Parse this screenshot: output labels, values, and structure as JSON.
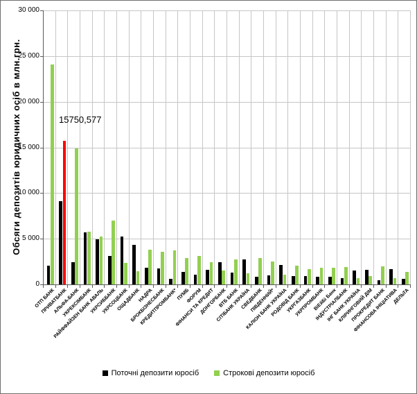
{
  "chart_data": {
    "type": "bar",
    "title": "",
    "xlabel": "",
    "ylabel": "Обсяги депозитів юридичних осіб в млн.грн.",
    "ylim": [
      0,
      30000
    ],
    "ytick_interval": 5000,
    "ytick_labels": [
      "0",
      "5 000",
      "10 000",
      "15 000",
      "20 000",
      "25 000",
      "30 000"
    ],
    "grid": true,
    "legend_position": "bottom",
    "annotation": "15750,577",
    "annotation_target": "ПРИВАТБАНК",
    "categories": [
      "ОТП БАНК",
      "ПРИВАТБАНК",
      "АЛЬФА-БАНК",
      "УКРЕКСІМБАНК",
      "РАЙФФАЙЗЕН БАНК АВАЛЬ",
      "УКРСИББАНК",
      "УКРСОЦБАНК",
      "ОЩАДБАНК",
      "НАДРА",
      "БРОКБІЗНЕСБАНК",
      "КРЕДИТПРОМБАНК*",
      "ПУМБ",
      "ФОРУМ",
      "ФІНАНСИ ТА КРЕДИТ",
      "ДОНГОРБАНК",
      "ВТБ БАНК",
      "СІТІБАНК УКРАЇНА",
      "СВЕДБАНК",
      "ПІВДЕННИЙ*",
      "КАЛІОН БАНК УКРАЇНА",
      "РОДОВІД БАНК",
      "УКРГАЗБАНК",
      "УКРПРОМБАНК",
      "ВіЕйБі Банк",
      "ІНДУСТРІАЛБАНК",
      "ІНГ БАНК УКРАЇНА",
      "КЛІРИНГОВИЙ ДІМ",
      "ПРОКРЕДИТ БАНК",
      "ФІНАНСОВА ІНІЦІАТИВА",
      "ДЕЛЬТА"
    ],
    "series": [
      {
        "name": "Поточні депозити юросіб",
        "color": "#000000",
        "values": [
          2050,
          9080,
          2400,
          5690,
          4940,
          3130,
          5250,
          4330,
          1790,
          1740,
          640,
          1340,
          1040,
          1620,
          2410,
          1320,
          2730,
          820,
          1010,
          2140,
          910,
          920,
          860,
          860,
          710,
          1550,
          1620,
          450,
          1650,
          600
        ]
      },
      {
        "name": "Строкові депозити юросіб",
        "color": "#92D050",
        "values": [
          24040,
          15750.577,
          14910,
          5810,
          5240,
          6980,
          2330,
          1420,
          3780,
          3580,
          3730,
          2910,
          3140,
          2450,
          1500,
          2730,
          1210,
          2900,
          2470,
          1060,
          2030,
          1710,
          1820,
          1810,
          1900,
          690,
          900,
          1950,
          700,
          1400
        ],
        "highlight": {
          "index": 1,
          "color": "#FF0000"
        }
      }
    ]
  }
}
